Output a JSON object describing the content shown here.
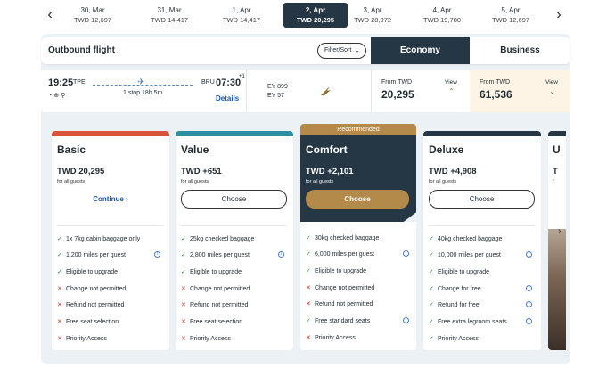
{
  "dates": [
    {
      "date": "30, Mar",
      "price": "TWD 12,697"
    },
    {
      "date": "31, Mar",
      "price": "TWD 14,417"
    },
    {
      "date": "1, Apr",
      "price": "TWD 14,417"
    },
    {
      "date": "2, Apr",
      "price": "TWD 20,295",
      "active": true
    },
    {
      "date": "3, Apr",
      "price": "TWD 28,972"
    },
    {
      "date": "4, Apr",
      "price": "TWD 19,780"
    },
    {
      "date": "5, Apr",
      "price": "TWD 12,697"
    }
  ],
  "header": {
    "title": "Outbound flight",
    "filter_label": "Filter/Sort",
    "tab_economy": "Economy",
    "tab_business": "Business"
  },
  "flight": {
    "dep_time": "19:25",
    "dep_code": "TPE",
    "arr_time": "07:30",
    "arr_code": "BRU",
    "arr_plus": "+1",
    "stops": "1 stop 18h 5m",
    "details": "Details",
    "flight1": "EY 899",
    "flight2": "EY 57",
    "economy": {
      "from": "From TWD",
      "price": "20,295",
      "view": "View"
    },
    "business": {
      "from": "From TWD",
      "price": "61,536",
      "view": "View"
    }
  },
  "cards": [
    {
      "title": "Basic",
      "price": "TWD 20,295",
      "sub": "for all guests",
      "action": "Continue",
      "features": [
        {
          "ok": true,
          "text": "1x 7kg cabin baggage only"
        },
        {
          "ok": true,
          "text": "1,200 miles per guest",
          "info": true
        },
        {
          "ok": true,
          "text": "Eligible to upgrade"
        },
        {
          "ok": false,
          "text": "Change not permitted"
        },
        {
          "ok": false,
          "text": "Refund not permitted"
        },
        {
          "ok": false,
          "text": "Free seat selection"
        },
        {
          "ok": false,
          "text": "Priority Access"
        }
      ]
    },
    {
      "title": "Value",
      "price": "TWD +651",
      "sub": "for all guests",
      "action": "Choose",
      "features": [
        {
          "ok": true,
          "text": "25kg checked baggage"
        },
        {
          "ok": true,
          "text": "2,800 miles per guest",
          "info": true
        },
        {
          "ok": true,
          "text": "Eligible to upgrade"
        },
        {
          "ok": false,
          "text": "Change not permitted"
        },
        {
          "ok": false,
          "text": "Refund not permitted"
        },
        {
          "ok": false,
          "text": "Free seat selection"
        },
        {
          "ok": false,
          "text": "Priority Access"
        }
      ]
    },
    {
      "title": "Comfort",
      "badge": "Recommended",
      "price": "TWD +2,101",
      "sub": "for all guests",
      "action": "Choose",
      "features": [
        {
          "ok": true,
          "text": "30kg checked baggage"
        },
        {
          "ok": true,
          "text": "6,000 miles per guest",
          "info": true
        },
        {
          "ok": true,
          "text": "Eligible to upgrade"
        },
        {
          "ok": false,
          "text": "Change not permitted"
        },
        {
          "ok": false,
          "text": "Refund not permitted"
        },
        {
          "ok": true,
          "text": "Free standard seats",
          "info": true
        },
        {
          "ok": false,
          "text": "Priority Access"
        }
      ]
    },
    {
      "title": "Deluxe",
      "price": "TWD +4,908",
      "sub": "for all guests",
      "action": "Choose",
      "features": [
        {
          "ok": true,
          "text": "40kg checked baggage"
        },
        {
          "ok": true,
          "text": "10,000 miles per guest",
          "info": true
        },
        {
          "ok": true,
          "text": "Eligible to upgrade"
        },
        {
          "ok": true,
          "text": "Change for free",
          "info": true
        },
        {
          "ok": true,
          "text": "Refund for free",
          "info": true
        },
        {
          "ok": true,
          "text": "Free extra legroom seats",
          "info": true
        },
        {
          "ok": true,
          "text": "Priority Access"
        }
      ]
    }
  ],
  "partial": {
    "title": "U",
    "price": "T",
    "sub": "f"
  },
  "colors": {
    "navy": "#253645",
    "basic_bar": "#d9523a",
    "value_bar": "#2e8fa4",
    "comfort_gold": "#b38a4a",
    "deluxe_bar": "#253645"
  }
}
